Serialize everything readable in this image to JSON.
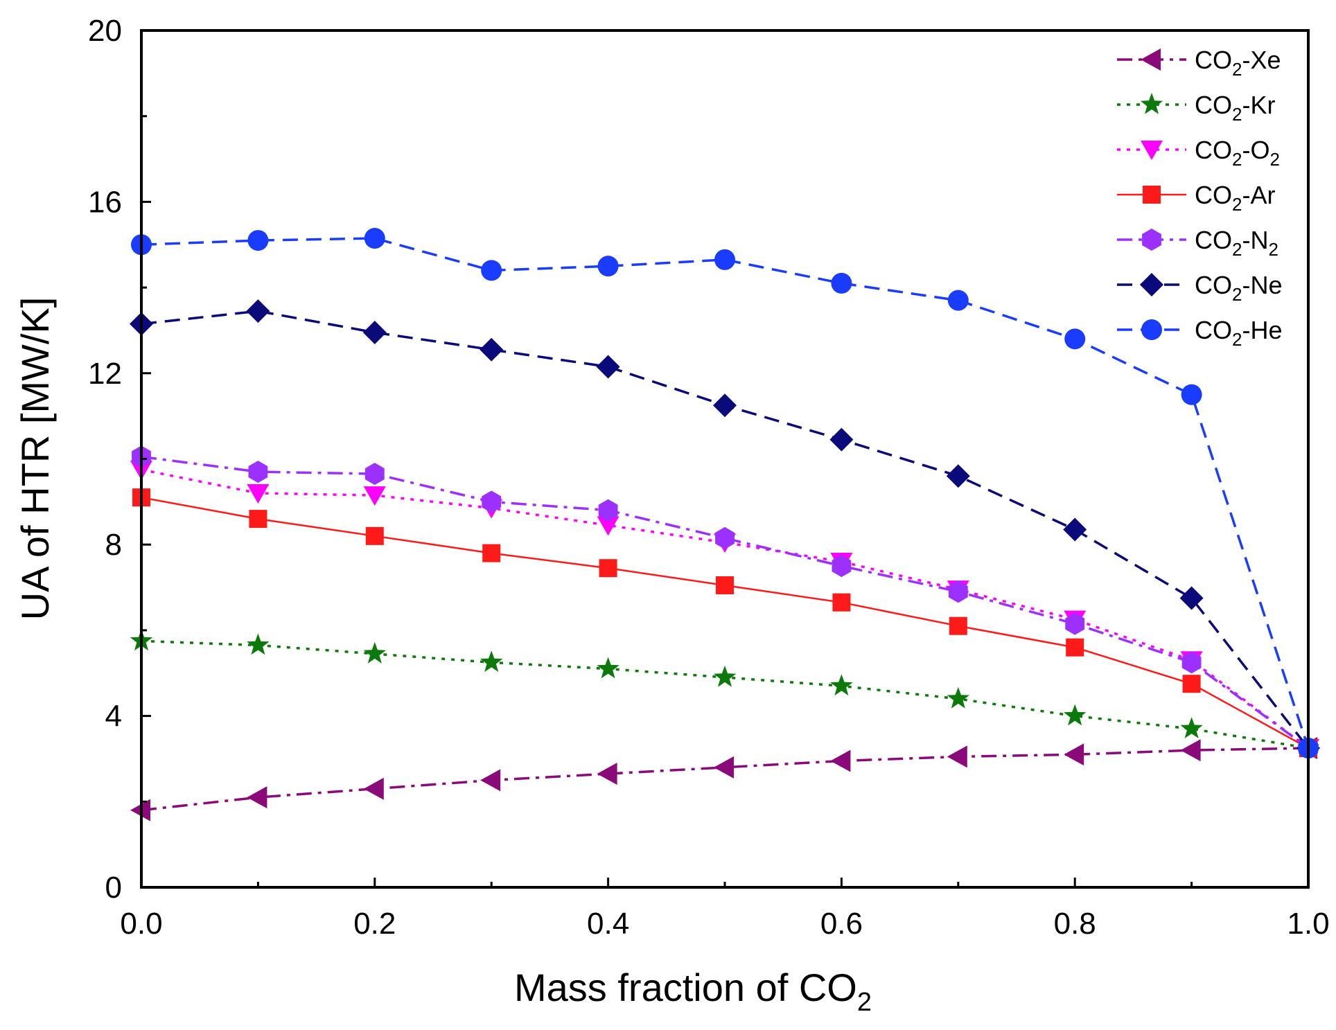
{
  "chart_data": {
    "type": "line",
    "xlabel": "Mass fraction of CO",
    "xlabel_sub": "2",
    "ylabel": "UA of HTR [MW/K]",
    "xlim": [
      0,
      1
    ],
    "ylim": [
      0,
      20
    ],
    "xticks": [
      "0.0",
      "0.2",
      "0.4",
      "0.6",
      "0.8",
      "1.0"
    ],
    "yticks": [
      "0",
      "4",
      "8",
      "12",
      "16",
      "20"
    ],
    "grid": false,
    "legend_position": "top-right",
    "x": [
      0.0,
      0.1,
      0.2,
      0.3,
      0.4,
      0.5,
      0.6,
      0.7,
      0.8,
      0.9,
      1.0
    ],
    "series": [
      {
        "name": "CO2-Xe",
        "label_pre": "CO",
        "label_sub": "2",
        "label_post": "-Xe",
        "color": "#8B0A7A",
        "marker": "triangle-left",
        "dash": "dashdot",
        "values": [
          1.8,
          2.1,
          2.3,
          2.5,
          2.65,
          2.8,
          2.95,
          3.05,
          3.1,
          3.2,
          3.25
        ]
      },
      {
        "name": "CO2-Kr",
        "label_pre": "CO",
        "label_sub": "2",
        "label_post": "-Kr",
        "color": "#0B7A0B",
        "marker": "star",
        "dash": "dotted",
        "values": [
          5.75,
          5.65,
          5.45,
          5.25,
          5.1,
          4.9,
          4.7,
          4.4,
          4.0,
          3.7,
          3.25
        ]
      },
      {
        "name": "CO2-O2",
        "label_pre": "CO",
        "label_sub": "2",
        "label_post": "-O",
        "label_sub2": "2",
        "color": "#FF00FF",
        "marker": "triangle-down",
        "dash": "dotted",
        "values": [
          9.75,
          9.2,
          9.15,
          8.85,
          8.45,
          8.05,
          7.6,
          6.95,
          6.25,
          5.3,
          3.25
        ]
      },
      {
        "name": "CO2-Ar",
        "label_pre": "CO",
        "label_sub": "2",
        "label_post": "-Ar",
        "color": "#FF1A1A",
        "marker": "square",
        "dash": "solid",
        "values": [
          9.1,
          8.6,
          8.2,
          7.8,
          7.45,
          7.05,
          6.65,
          6.1,
          5.6,
          4.75,
          3.25
        ]
      },
      {
        "name": "CO2-N2",
        "label_pre": "CO",
        "label_sub": "2",
        "label_post": "-N",
        "label_sub2": "2",
        "color": "#9B30FF",
        "marker": "hexagon",
        "dash": "dashdot",
        "values": [
          10.05,
          9.7,
          9.65,
          9.0,
          8.8,
          8.15,
          7.5,
          6.9,
          6.15,
          5.25,
          3.25
        ]
      },
      {
        "name": "CO2-Ne",
        "label_pre": "CO",
        "label_sub": "2",
        "label_post": "-Ne",
        "color": "#0A0A7A",
        "marker": "diamond",
        "dash": "dashed",
        "values": [
          13.15,
          13.45,
          12.95,
          12.55,
          12.15,
          11.25,
          10.45,
          9.6,
          8.35,
          6.75,
          3.25
        ]
      },
      {
        "name": "CO2-He",
        "label_pre": "CO",
        "label_sub": "2",
        "label_post": "-He",
        "color": "#1A3CFF",
        "marker": "circle",
        "dash": "dashed",
        "values": [
          15.0,
          15.1,
          15.15,
          14.4,
          14.5,
          14.65,
          14.1,
          13.7,
          12.8,
          11.5,
          3.25
        ]
      }
    ]
  }
}
